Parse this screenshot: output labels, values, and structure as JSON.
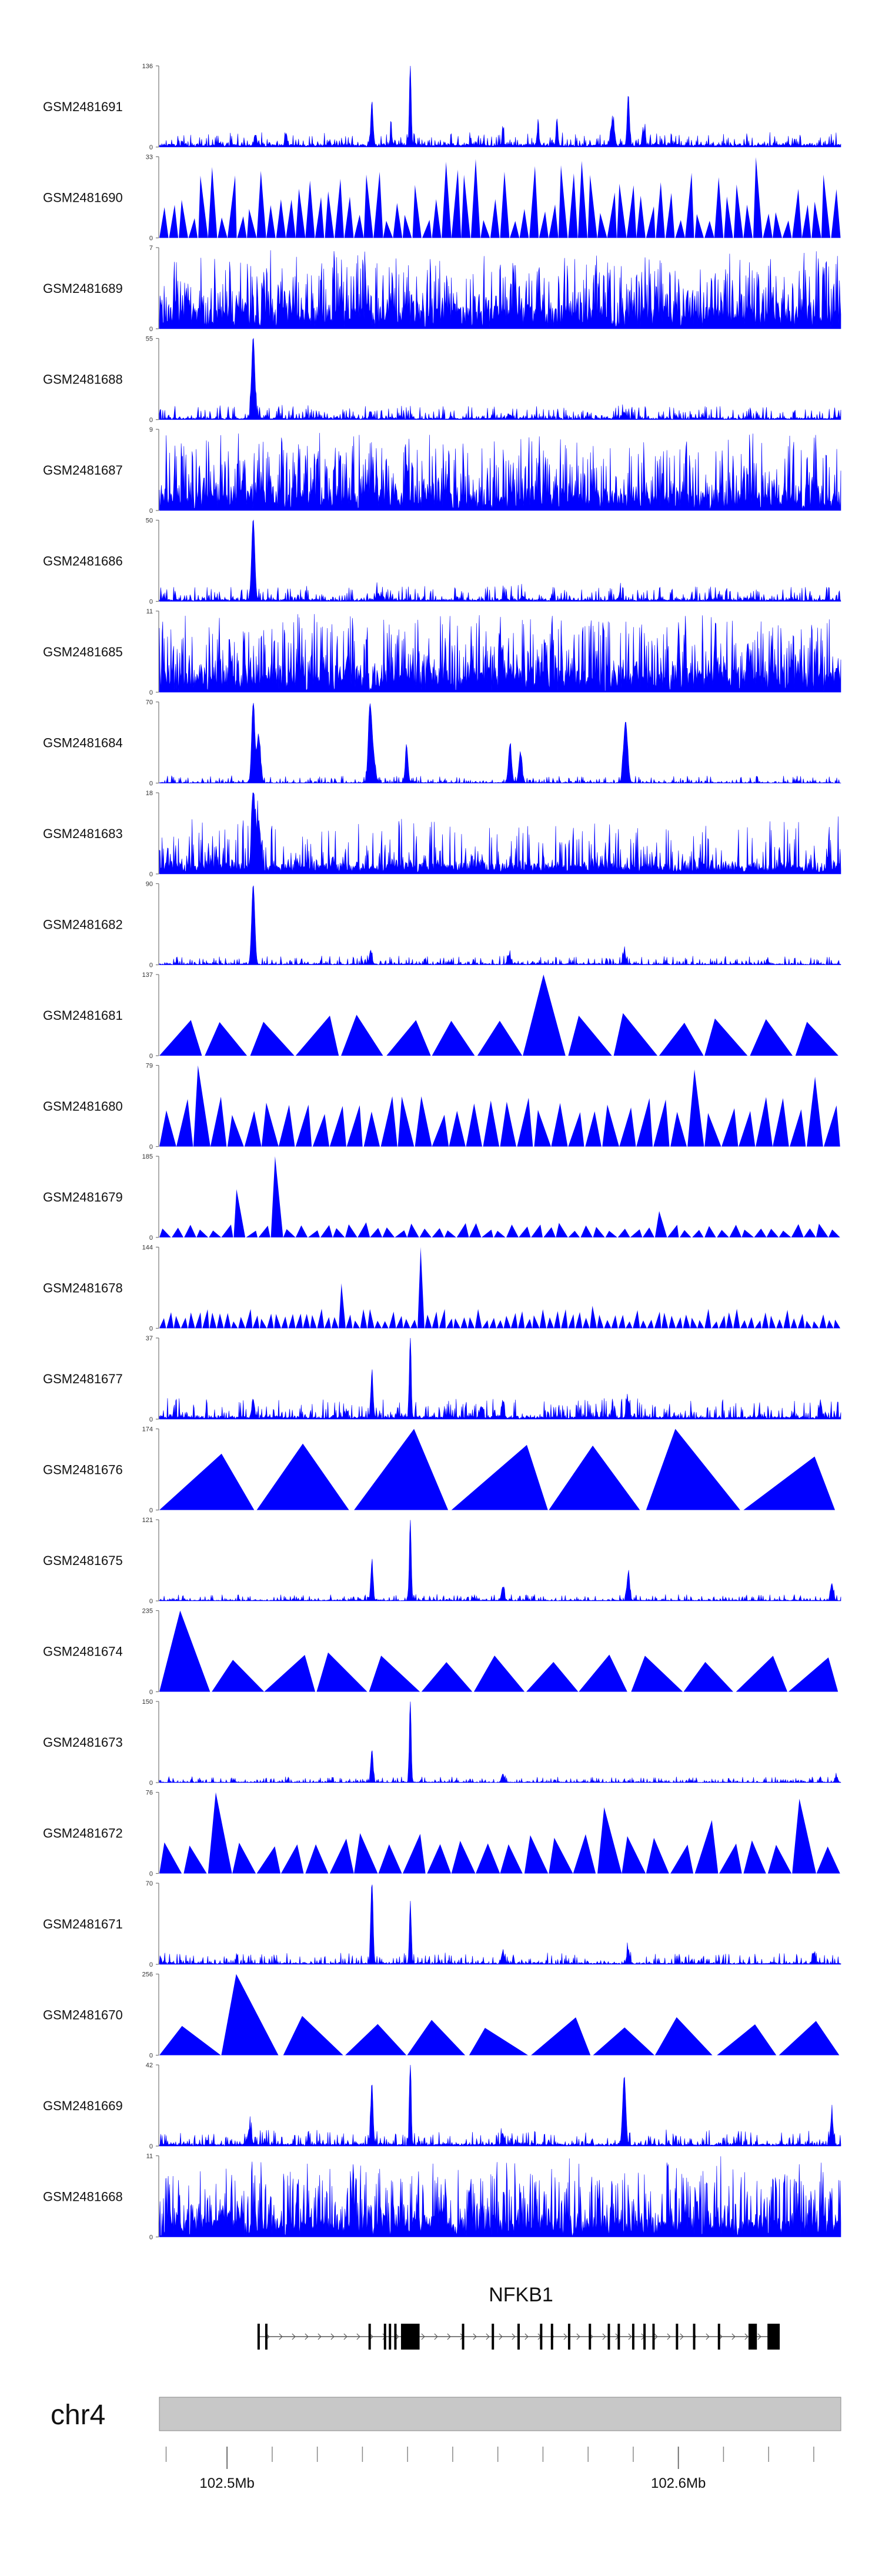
{
  "chart_data": {
    "type": "area",
    "title": "",
    "chromosome": "chr4",
    "xrange_mb": [
      102.485,
      102.636
    ],
    "color": "#0000ff",
    "tracks": [
      {
        "name": "GSM2481691",
        "ymax": 136,
        "style": "signal",
        "base": 4,
        "noise": 7,
        "peaks": [
          [
            102.5063,
            18,
            0.25
          ],
          [
            102.5131,
            20,
            0.2
          ],
          [
            102.5321,
            70,
            0.25
          ],
          [
            102.5363,
            45,
            0.12
          ],
          [
            102.5406,
            136,
            0.2
          ],
          [
            102.5611,
            30,
            0.18
          ],
          [
            102.5689,
            25,
            0.25
          ],
          [
            102.5731,
            45,
            0.2
          ],
          [
            102.5854,
            40,
            0.4
          ],
          [
            102.5889,
            85,
            0.25
          ],
          [
            102.5925,
            25,
            0.25
          ]
        ]
      },
      {
        "name": "GSM2481690",
        "ymax": 33,
        "style": "triangles",
        "seed": 11,
        "n": 70,
        "hmin": 6,
        "hmax": 33
      },
      {
        "name": "GSM2481689",
        "ymax": 7,
        "style": "dense",
        "seed": 23,
        "level": 2.0,
        "spread": 5
      },
      {
        "name": "GSM2481688",
        "ymax": 55,
        "style": "signal",
        "base": 1,
        "noise": 3,
        "peaks": [
          [
            102.5058,
            55,
            0.35
          ],
          [
            102.5318,
            5,
            0.25
          ],
          [
            102.5625,
            3,
            0.3
          ],
          [
            102.588,
            4,
            0.3
          ]
        ]
      },
      {
        "name": "GSM2481687",
        "ymax": 9,
        "style": "dense",
        "seed": 37,
        "level": 2.0,
        "spread": 7
      },
      {
        "name": "GSM2481686",
        "ymax": 50,
        "style": "signal",
        "base": 1,
        "noise": 3,
        "peaks": [
          [
            102.5058,
            50,
            0.35
          ],
          [
            102.5335,
            4,
            0.3
          ],
          [
            102.5655,
            3,
            0.3
          ],
          [
            102.587,
            3,
            0.3
          ]
        ]
      },
      {
        "name": "GSM2481685",
        "ymax": 11,
        "style": "dense",
        "seed": 41,
        "level": 3.0,
        "spread": 8
      },
      {
        "name": "GSM2481684",
        "ymax": 70,
        "style": "signal",
        "base": 0.5,
        "noise": 2,
        "peaks": [
          [
            102.5058,
            68,
            0.35
          ],
          [
            102.507,
            40,
            0.4
          ],
          [
            102.5316,
            52,
            0.35
          ],
          [
            102.5322,
            30,
            0.5
          ],
          [
            102.5398,
            30,
            0.3
          ],
          [
            102.5627,
            32,
            0.35
          ],
          [
            102.565,
            25,
            0.35
          ],
          [
            102.5883,
            52,
            0.45
          ]
        ]
      },
      {
        "name": "GSM2481683",
        "ymax": 18,
        "style": "signal",
        "base": 2,
        "noise": 3.5,
        "peaks": [
          [
            102.5058,
            18,
            0.35
          ],
          [
            102.507,
            10,
            0.4
          ]
        ]
      },
      {
        "name": "GSM2481682",
        "ymax": 90,
        "style": "signal",
        "base": 1,
        "noise": 3,
        "peaks": [
          [
            102.5058,
            88,
            0.35
          ],
          [
            102.5318,
            14,
            0.3
          ],
          [
            102.5625,
            10,
            0.35
          ],
          [
            102.588,
            12,
            0.3
          ]
        ]
      },
      {
        "name": "GSM2481681",
        "ymax": 137,
        "style": "triangles",
        "seed": 53,
        "n": 15,
        "hmin": 55,
        "hmax": 75,
        "tall": [
          [
            8,
            137
          ]
        ]
      },
      {
        "name": "GSM2481680",
        "ymax": 79,
        "style": "triangles",
        "seed": 61,
        "n": 40,
        "hmin": 30,
        "hmax": 50,
        "tall": [
          [
            2,
            79
          ],
          [
            31,
            75
          ],
          [
            38,
            68
          ]
        ]
      },
      {
        "name": "GSM2481679",
        "ymax": 185,
        "style": "triangles",
        "seed": 67,
        "n": 55,
        "hmin": 15,
        "hmax": 35,
        "tall": [
          [
            6,
            110
          ],
          [
            9,
            185
          ],
          [
            40,
            60
          ]
        ]
      },
      {
        "name": "GSM2481678",
        "ymax": 144,
        "style": "triangles",
        "seed": 71,
        "n": 95,
        "hmin": 12,
        "hmax": 35,
        "tall": [
          [
            25,
            80
          ],
          [
            36,
            144
          ],
          [
            60,
            40
          ]
        ]
      },
      {
        "name": "GSM2481677",
        "ymax": 37,
        "style": "signal",
        "base": 1,
        "noise": 3,
        "peaks": [
          [
            102.5058,
            8,
            0.3
          ],
          [
            102.5321,
            20,
            0.25
          ],
          [
            102.5406,
            37,
            0.2
          ],
          [
            102.5563,
            5,
            0.3
          ],
          [
            102.5611,
            7,
            0.3
          ],
          [
            102.5889,
            8,
            0.3
          ],
          [
            102.6315,
            7,
            0.3
          ]
        ]
      },
      {
        "name": "GSM2481676",
        "ymax": 174,
        "style": "triangles",
        "seed": 83,
        "n": 7,
        "hmin": 110,
        "hmax": 150,
        "tall": [
          [
            2,
            174
          ],
          [
            5,
            174
          ]
        ]
      },
      {
        "name": "GSM2481675",
        "ymax": 121,
        "style": "signal",
        "base": 1,
        "noise": 3,
        "peaks": [
          [
            102.5321,
            55,
            0.25
          ],
          [
            102.5406,
            121,
            0.2
          ],
          [
            102.5611,
            20,
            0.3
          ],
          [
            102.5889,
            40,
            0.3
          ],
          [
            102.634,
            25,
            0.3
          ]
        ]
      },
      {
        "name": "GSM2481674",
        "ymax": 235,
        "style": "triangles",
        "seed": 89,
        "n": 13,
        "hmin": 80,
        "hmax": 115,
        "tall": [
          [
            0,
            235
          ]
        ]
      },
      {
        "name": "GSM2481673",
        "ymax": 150,
        "style": "signal",
        "base": 1,
        "noise": 3.5,
        "peaks": [
          [
            102.5321,
            60,
            0.25
          ],
          [
            102.5406,
            150,
            0.2
          ],
          [
            102.5611,
            15,
            0.3
          ],
          [
            102.635,
            10,
            0.3
          ]
        ]
      },
      {
        "name": "GSM2481672",
        "ymax": 76,
        "style": "triangles",
        "seed": 97,
        "n": 28,
        "hmin": 25,
        "hmax": 40,
        "tall": [
          [
            2,
            76
          ],
          [
            18,
            62
          ],
          [
            22,
            50
          ],
          [
            26,
            70
          ]
        ]
      },
      {
        "name": "GSM2481671",
        "ymax": 70,
        "style": "signal",
        "base": 1,
        "noise": 3,
        "peaks": [
          [
            102.5321,
            70,
            0.25
          ],
          [
            102.5406,
            50,
            0.2
          ],
          [
            102.5611,
            10,
            0.3
          ],
          [
            102.5889,
            12,
            0.3
          ],
          [
            102.63,
            9,
            0.3
          ]
        ]
      },
      {
        "name": "GSM2481670",
        "ymax": 256,
        "style": "triangles",
        "seed": 101,
        "n": 11,
        "hmin": 80,
        "hmax": 125,
        "tall": [
          [
            1,
            256
          ]
        ]
      },
      {
        "name": "GSM2481669",
        "ymax": 42,
        "style": "signal",
        "base": 1,
        "noise": 2.5,
        "peaks": [
          [
            102.505,
            8,
            0.4
          ],
          [
            102.5321,
            32,
            0.25
          ],
          [
            102.5406,
            42,
            0.2
          ],
          [
            102.5611,
            6,
            0.3
          ],
          [
            102.588,
            35,
            0.35
          ],
          [
            102.634,
            15,
            0.3
          ]
        ]
      },
      {
        "name": "GSM2481668",
        "ymax": 11,
        "style": "dense",
        "seed": 113,
        "level": 2.5,
        "spread": 8
      }
    ],
    "gene": {
      "name": "NFKB1",
      "start_mb": 102.507,
      "end_mb": 102.6222,
      "strand": "+",
      "exons_mb": [
        102.507,
        102.5087,
        102.5316,
        102.535,
        102.5361,
        102.5373,
        102.5388,
        102.5424,
        102.5523,
        102.5589,
        102.5646,
        102.5696,
        102.572,
        102.5758,
        102.5804,
        102.5846,
        102.5868,
        102.59,
        102.5925,
        102.5945,
        102.5997,
        102.6035,
        102.609,
        102.6158,
        102.62,
        102.6222
      ],
      "thick_mb": [
        [
          102.5388,
          102.5424
        ],
        [
          102.6158,
          102.6174
        ],
        [
          102.62,
          102.6222
        ]
      ]
    },
    "axis": {
      "ticks_mb": [
        102.4865,
        102.5,
        102.51,
        102.52,
        102.53,
        102.54,
        102.55,
        102.56,
        102.57,
        102.58,
        102.59,
        102.6,
        102.61,
        102.62,
        102.63
      ],
      "labels": [
        {
          "value_mb": 102.5,
          "text": "102.5Mb"
        },
        {
          "value_mb": 102.6,
          "text": "102.6Mb"
        }
      ]
    }
  }
}
